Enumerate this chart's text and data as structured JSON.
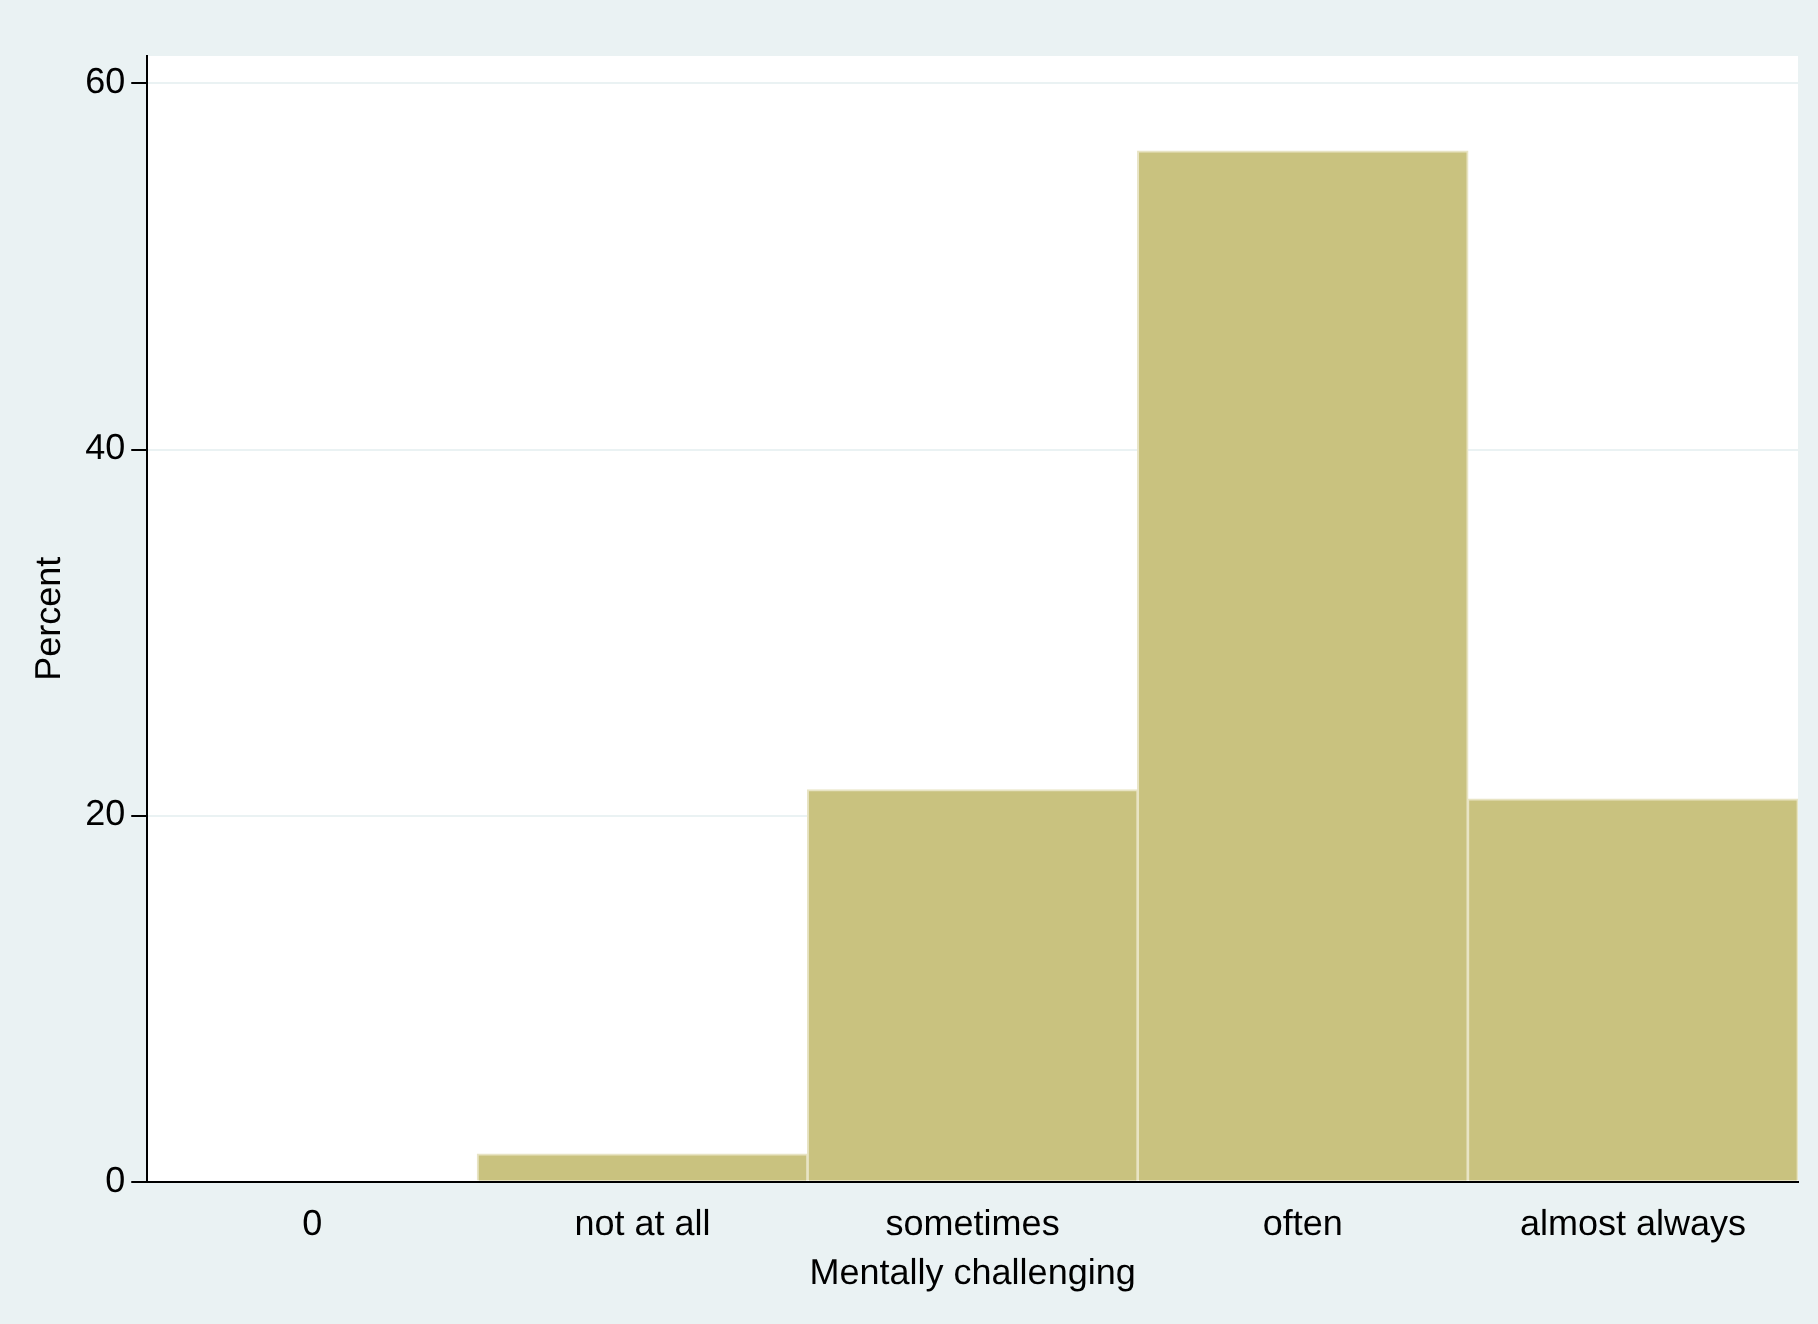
{
  "chart_data": {
    "type": "bar",
    "xlabel": "Mentally challenging",
    "ylabel": "Percent",
    "categories": [
      "0",
      "not at all",
      "sometimes",
      "often",
      "almost always"
    ],
    "values": [
      0,
      1.5,
      21.4,
      56.3,
      20.9
    ],
    "color": "#c9c27f",
    "ylim": [
      0,
      61.5
    ],
    "yticks": [
      0,
      20,
      40,
      60
    ],
    "grid": "y",
    "legend": false
  }
}
